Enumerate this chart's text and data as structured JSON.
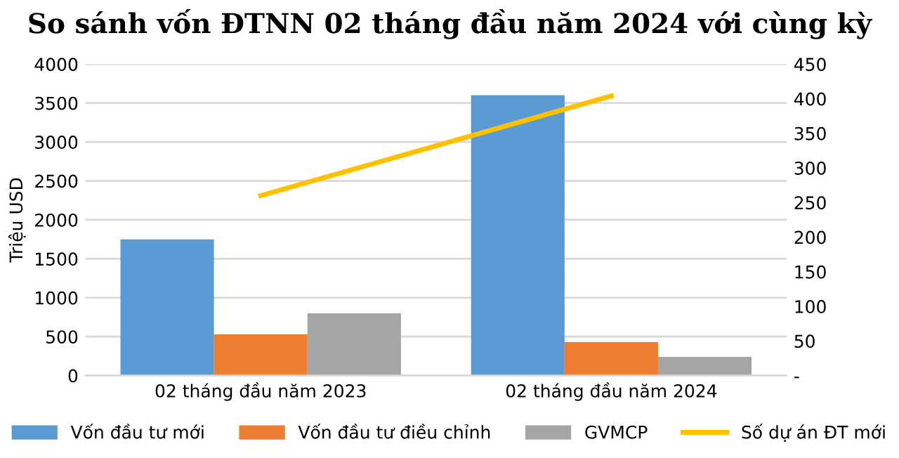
{
  "chart_data": {
    "type": "bar",
    "title": "So sánh vốn ĐTNN 02 tháng đầu năm 2024 với cùng kỳ",
    "ylabel": "Triệu USD",
    "categories": [
      "02 tháng đầu năm 2023",
      "02 tháng đầu năm 2024"
    ],
    "series": [
      {
        "name": "Vốn đầu tư mới",
        "color": "#5b9bd5",
        "values": [
          1750,
          3600
        ]
      },
      {
        "name": "Vốn đầu tư điều chỉnh",
        "color": "#ed7d31",
        "values": [
          530,
          430
        ]
      },
      {
        "name": "GVMCP",
        "color": "#a5a5a5",
        "values": [
          800,
          240
        ]
      },
      {
        "name": "Số dự án ĐT mới",
        "color": "#ffc000",
        "type": "line",
        "axis": "y2",
        "values": [
          260,
          404
        ]
      }
    ],
    "ylim": [
      0,
      4000
    ],
    "yticks": [
      0,
      500,
      1000,
      1500,
      2000,
      2500,
      3000,
      3500,
      4000
    ],
    "y2lim": [
      0,
      450
    ],
    "y2ticks": [
      {
        "value": 0,
        "label": "-"
      },
      50,
      100,
      150,
      200,
      250,
      300,
      350,
      400,
      450
    ],
    "grid": "y",
    "legend": "bottom",
    "marker": "none"
  }
}
